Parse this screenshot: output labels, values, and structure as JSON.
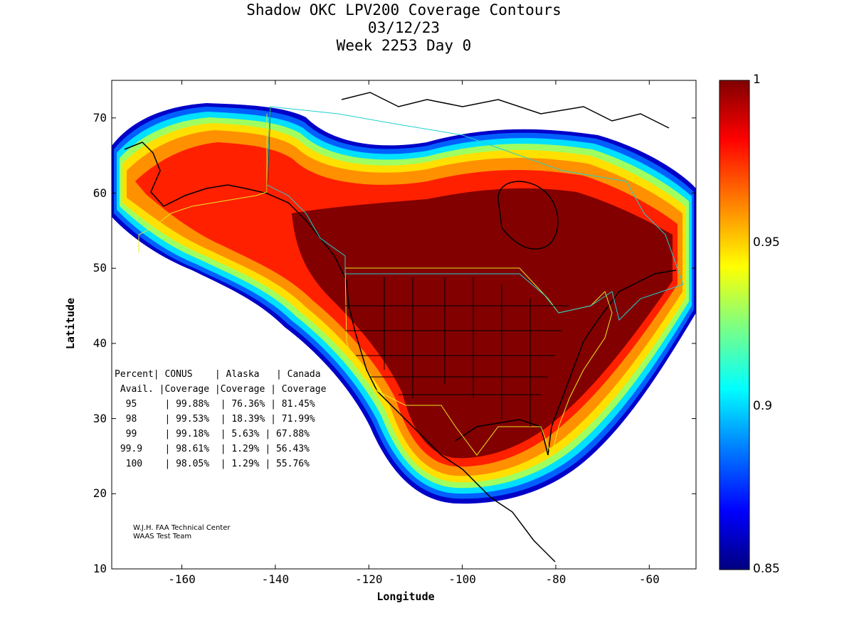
{
  "title": {
    "line1": "Shadow OKC LPV200 Coverage Contours",
    "line2": "03/12/23",
    "line3": "Week 2253 Day 0"
  },
  "axes": {
    "xlabel": "Longitude",
    "ylabel": "Latitude",
    "xlim": [
      -175,
      -50
    ],
    "ylim": [
      10,
      75
    ],
    "xticks": [
      -160,
      -140,
      -120,
      -100,
      -80,
      -60
    ],
    "yticks": [
      10,
      20,
      30,
      40,
      50,
      60,
      70
    ]
  },
  "colorbar": {
    "range": [
      0.85,
      1
    ],
    "ticks": [
      "1",
      "0.95",
      "0.9",
      "0.85"
    ],
    "colormap": [
      "#000080",
      "#0000ff",
      "#0080ff",
      "#00ffff",
      "#80ff80",
      "#ffff00",
      "#ff8000",
      "#ff0000",
      "#800000"
    ]
  },
  "table": {
    "header1": [
      "Percent",
      "CONUS",
      "Alaska",
      "Canada"
    ],
    "header2": [
      "Avail.",
      "Coverage",
      "Coverage",
      "Coverage"
    ],
    "rows": [
      [
        "95",
        "99.88%",
        "76.36%",
        "81.45%"
      ],
      [
        "98",
        "99.53%",
        "18.39%",
        "71.99%"
      ],
      [
        "99",
        "99.18%",
        "5.63%",
        "67.88%"
      ],
      [
        "99.9",
        "98.61%",
        "1.29%",
        "56.43%"
      ],
      [
        "100",
        "98.05%",
        "1.29%",
        "55.76%"
      ]
    ]
  },
  "credit": {
    "line1": "W.J.H. FAA Technical Center",
    "line2": "WAAS Test Team"
  }
}
